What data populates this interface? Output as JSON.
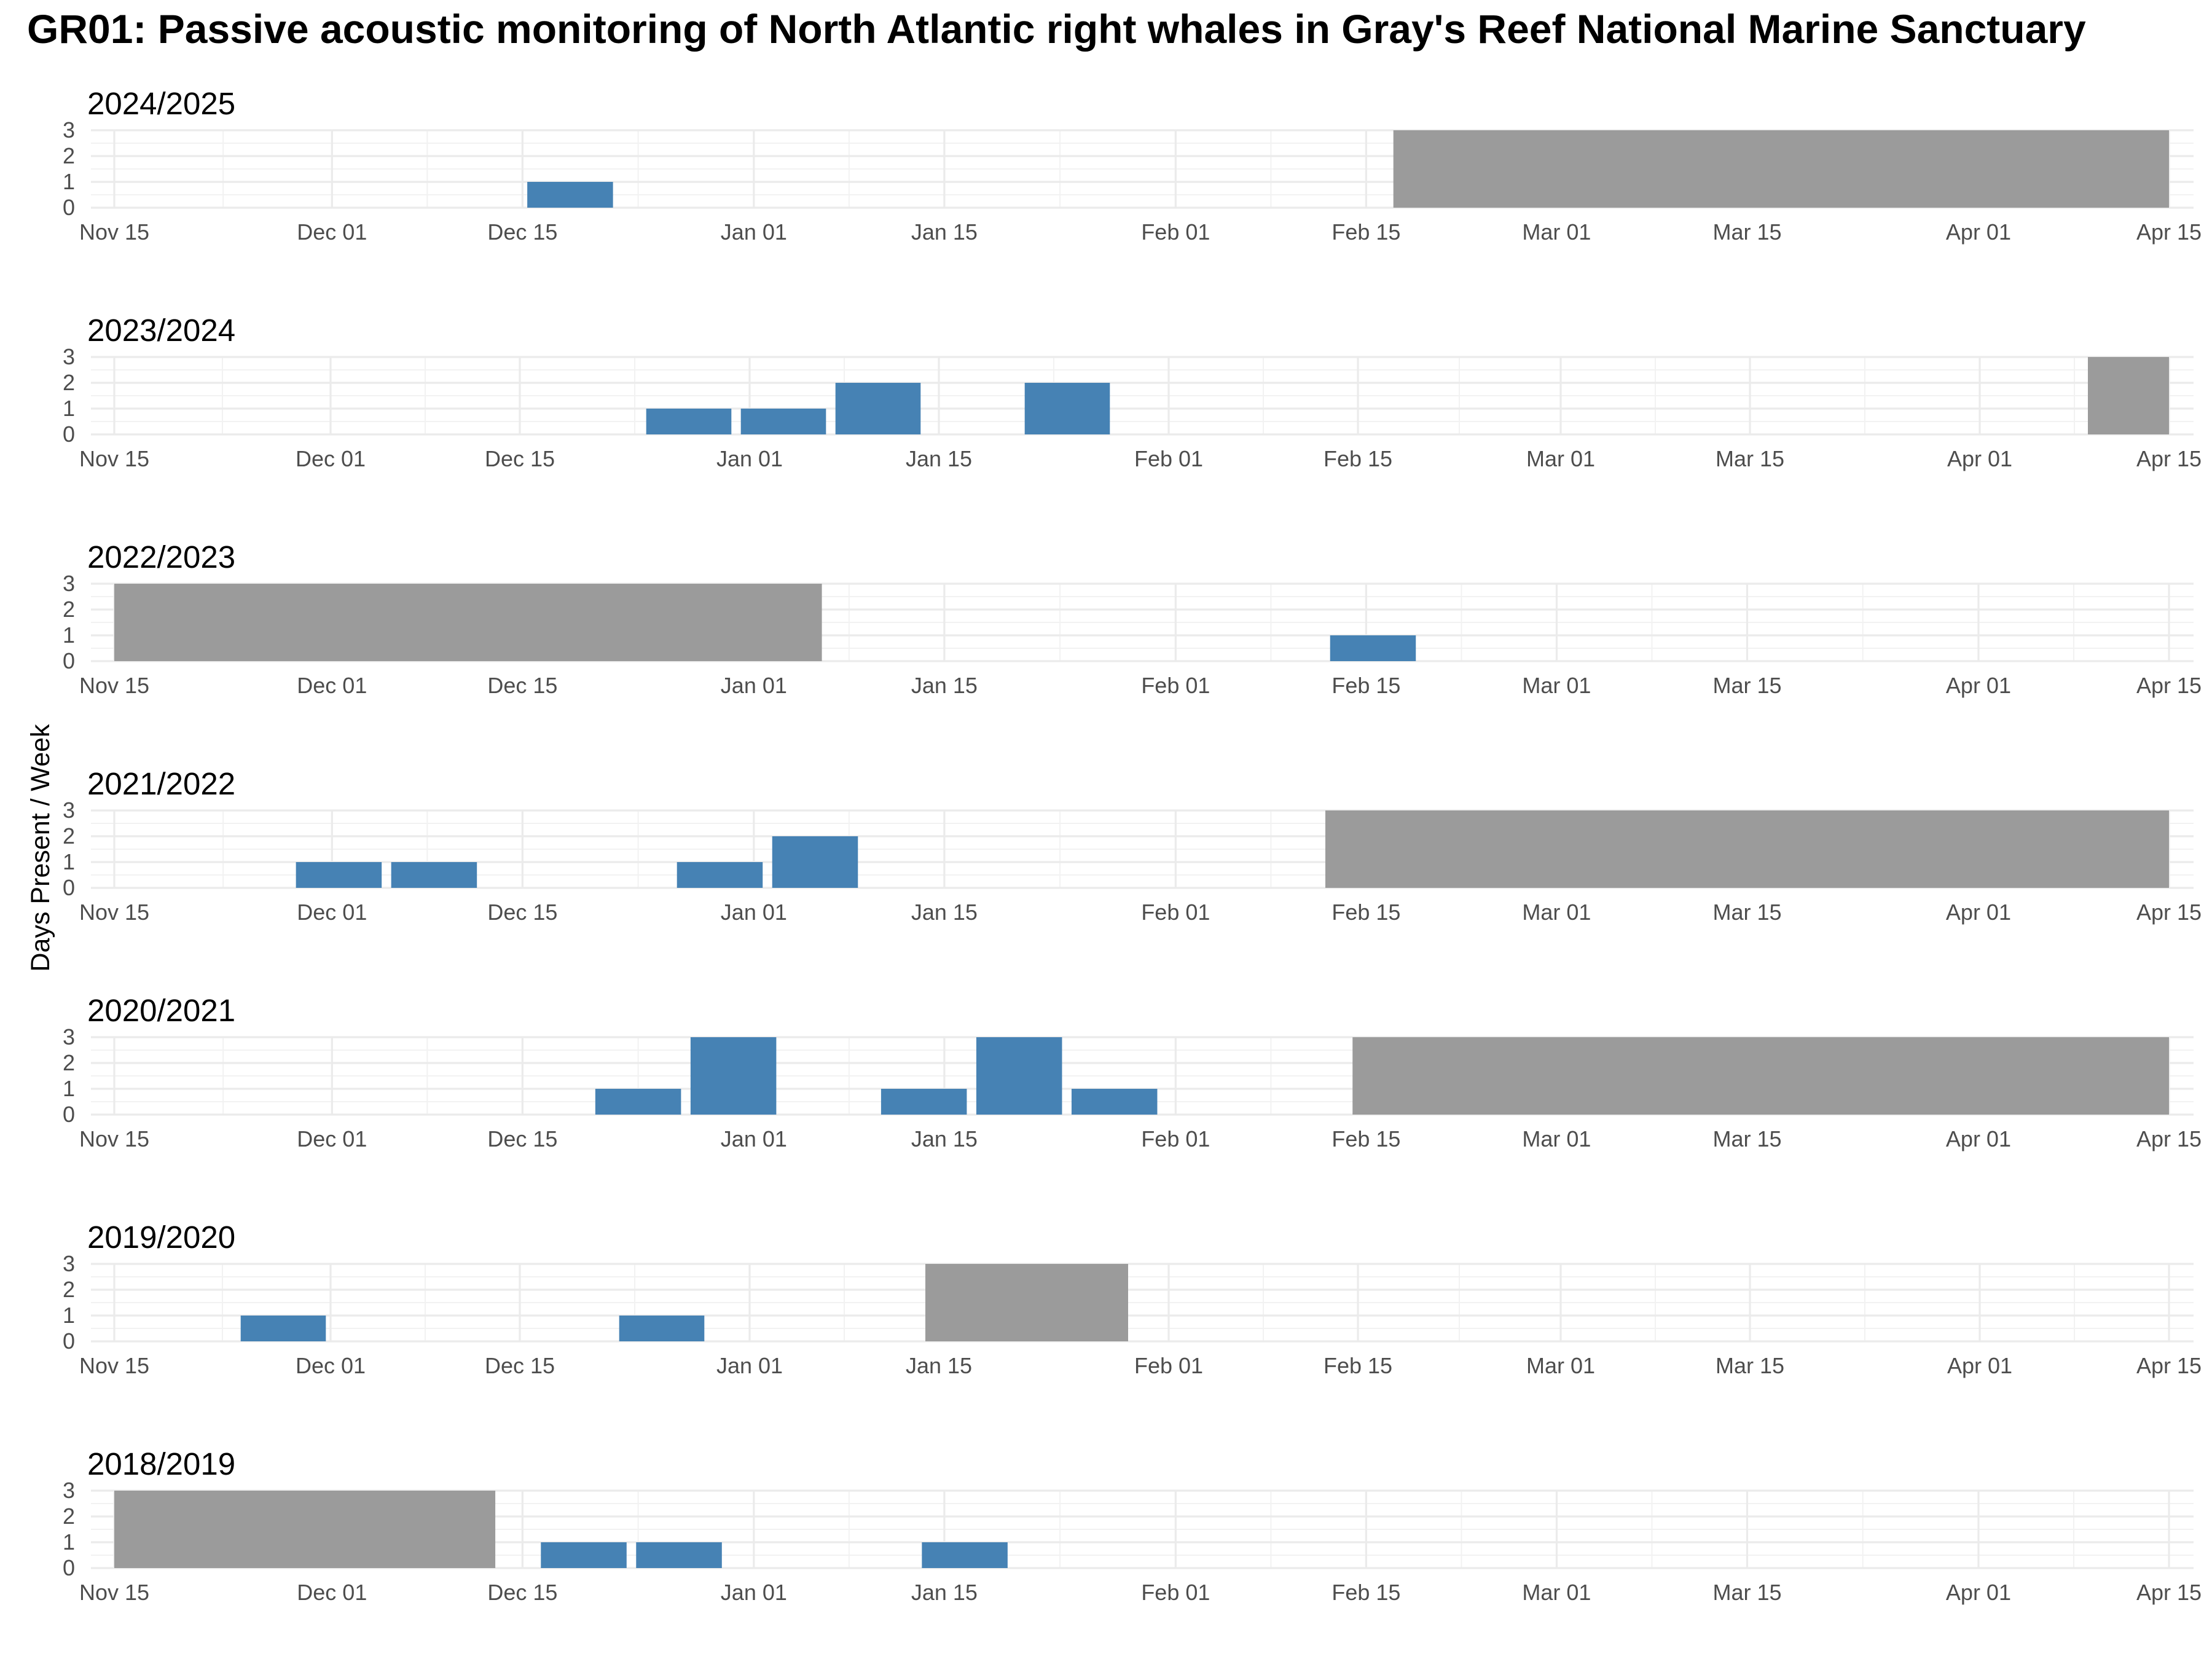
{
  "chart_data": {
    "type": "bar",
    "title": "GR01: Passive acoustic monitoring of North Atlantic right whales in Gray's Reef National Marine Sanctuary",
    "ylabel": "Days Present / Week",
    "ylim": [
      0,
      3
    ],
    "y_ticks": [
      "0",
      "1",
      "2",
      "3"
    ],
    "x_ticks": [
      "Nov 15",
      "Dec 01",
      "Dec 15",
      "Jan 01",
      "Jan 15",
      "Feb 01",
      "Feb 15",
      "Mar 01",
      "Mar 15",
      "Apr 01",
      "Apr 15"
    ],
    "grid": true,
    "colors": {
      "presence": "#4682b4",
      "no_data": "#999999"
    },
    "panels": [
      {
        "season": "2024/2025",
        "x_ticks": [
          "2024-11-15",
          "2024-12-01",
          "2024-12-15",
          "2025-01-01",
          "2025-01-15",
          "2025-02-01",
          "2025-02-15",
          "2025-03-01",
          "2025-03-15",
          "2025-04-01",
          "2025-04-15"
        ],
        "bars": [
          {
            "week_start": "2024-12-15",
            "days": 1
          }
        ],
        "no_data": [
          {
            "start": "2025-02-17",
            "end": "2025-04-15"
          }
        ]
      },
      {
        "season": "2023/2024",
        "x_ticks": [
          "2023-11-15",
          "2023-12-01",
          "2023-12-15",
          "2024-01-01",
          "2024-01-15",
          "2024-02-01",
          "2024-02-15",
          "2024-03-01",
          "2024-03-15",
          "2024-04-01",
          "2024-04-15"
        ],
        "bars": [
          {
            "week_start": "2023-12-24",
            "days": 1
          },
          {
            "week_start": "2023-12-31",
            "days": 1
          },
          {
            "week_start": "2024-01-07",
            "days": 2
          },
          {
            "week_start": "2024-01-21",
            "days": 2
          }
        ],
        "no_data": [
          {
            "start": "2024-04-09",
            "end": "2024-04-15"
          }
        ]
      },
      {
        "season": "2022/2023",
        "x_ticks": [
          "2022-11-15",
          "2022-12-01",
          "2022-12-15",
          "2023-01-01",
          "2023-01-15",
          "2023-02-01",
          "2023-02-15",
          "2023-03-01",
          "2023-03-15",
          "2023-04-01",
          "2023-04-15"
        ],
        "bars": [
          {
            "week_start": "2023-02-12",
            "days": 1
          }
        ],
        "no_data": [
          {
            "start": "2022-11-15",
            "end": "2023-01-06"
          }
        ]
      },
      {
        "season": "2021/2022",
        "x_ticks": [
          "2021-11-15",
          "2021-12-01",
          "2021-12-15",
          "2022-01-01",
          "2022-01-15",
          "2022-02-01",
          "2022-02-15",
          "2022-03-01",
          "2022-03-15",
          "2022-04-01",
          "2022-04-15"
        ],
        "bars": [
          {
            "week_start": "2021-11-28",
            "days": 1
          },
          {
            "week_start": "2021-12-05",
            "days": 1
          },
          {
            "week_start": "2021-12-26",
            "days": 1
          },
          {
            "week_start": "2022-01-02",
            "days": 2
          }
        ],
        "no_data": [
          {
            "start": "2022-02-12",
            "end": "2022-04-15"
          }
        ]
      },
      {
        "season": "2020/2021",
        "x_ticks": [
          "2020-11-15",
          "2020-12-01",
          "2020-12-15",
          "2021-01-01",
          "2021-01-15",
          "2021-02-01",
          "2021-02-15",
          "2021-03-01",
          "2021-03-15",
          "2021-04-01",
          "2021-04-15"
        ],
        "bars": [
          {
            "week_start": "2020-12-20",
            "days": 1
          },
          {
            "week_start": "2020-12-27",
            "days": 3
          },
          {
            "week_start": "2021-01-10",
            "days": 1
          },
          {
            "week_start": "2021-01-17",
            "days": 3
          },
          {
            "week_start": "2021-01-24",
            "days": 1
          }
        ],
        "no_data": [
          {
            "start": "2021-02-14",
            "end": "2021-04-15"
          }
        ]
      },
      {
        "season": "2019/2020",
        "x_ticks": [
          "2019-11-15",
          "2019-12-01",
          "2019-12-15",
          "2020-01-01",
          "2020-01-15",
          "2020-02-01",
          "2020-02-15",
          "2020-03-01",
          "2020-03-15",
          "2020-04-01",
          "2020-04-15"
        ],
        "bars": [
          {
            "week_start": "2019-11-24",
            "days": 1
          },
          {
            "week_start": "2019-12-22",
            "days": 1
          }
        ],
        "no_data": [
          {
            "start": "2020-01-14",
            "end": "2020-01-29"
          }
        ]
      },
      {
        "season": "2018/2019",
        "x_ticks": [
          "2018-11-15",
          "2018-12-01",
          "2018-12-15",
          "2019-01-01",
          "2019-01-15",
          "2019-02-01",
          "2019-02-15",
          "2019-03-01",
          "2019-03-15",
          "2019-04-01",
          "2019-04-15"
        ],
        "bars": [
          {
            "week_start": "2018-12-16",
            "days": 1
          },
          {
            "week_start": "2018-12-23",
            "days": 1
          },
          {
            "week_start": "2019-01-13",
            "days": 1
          }
        ],
        "no_data": [
          {
            "start": "2018-11-15",
            "end": "2018-12-13"
          }
        ]
      }
    ]
  }
}
